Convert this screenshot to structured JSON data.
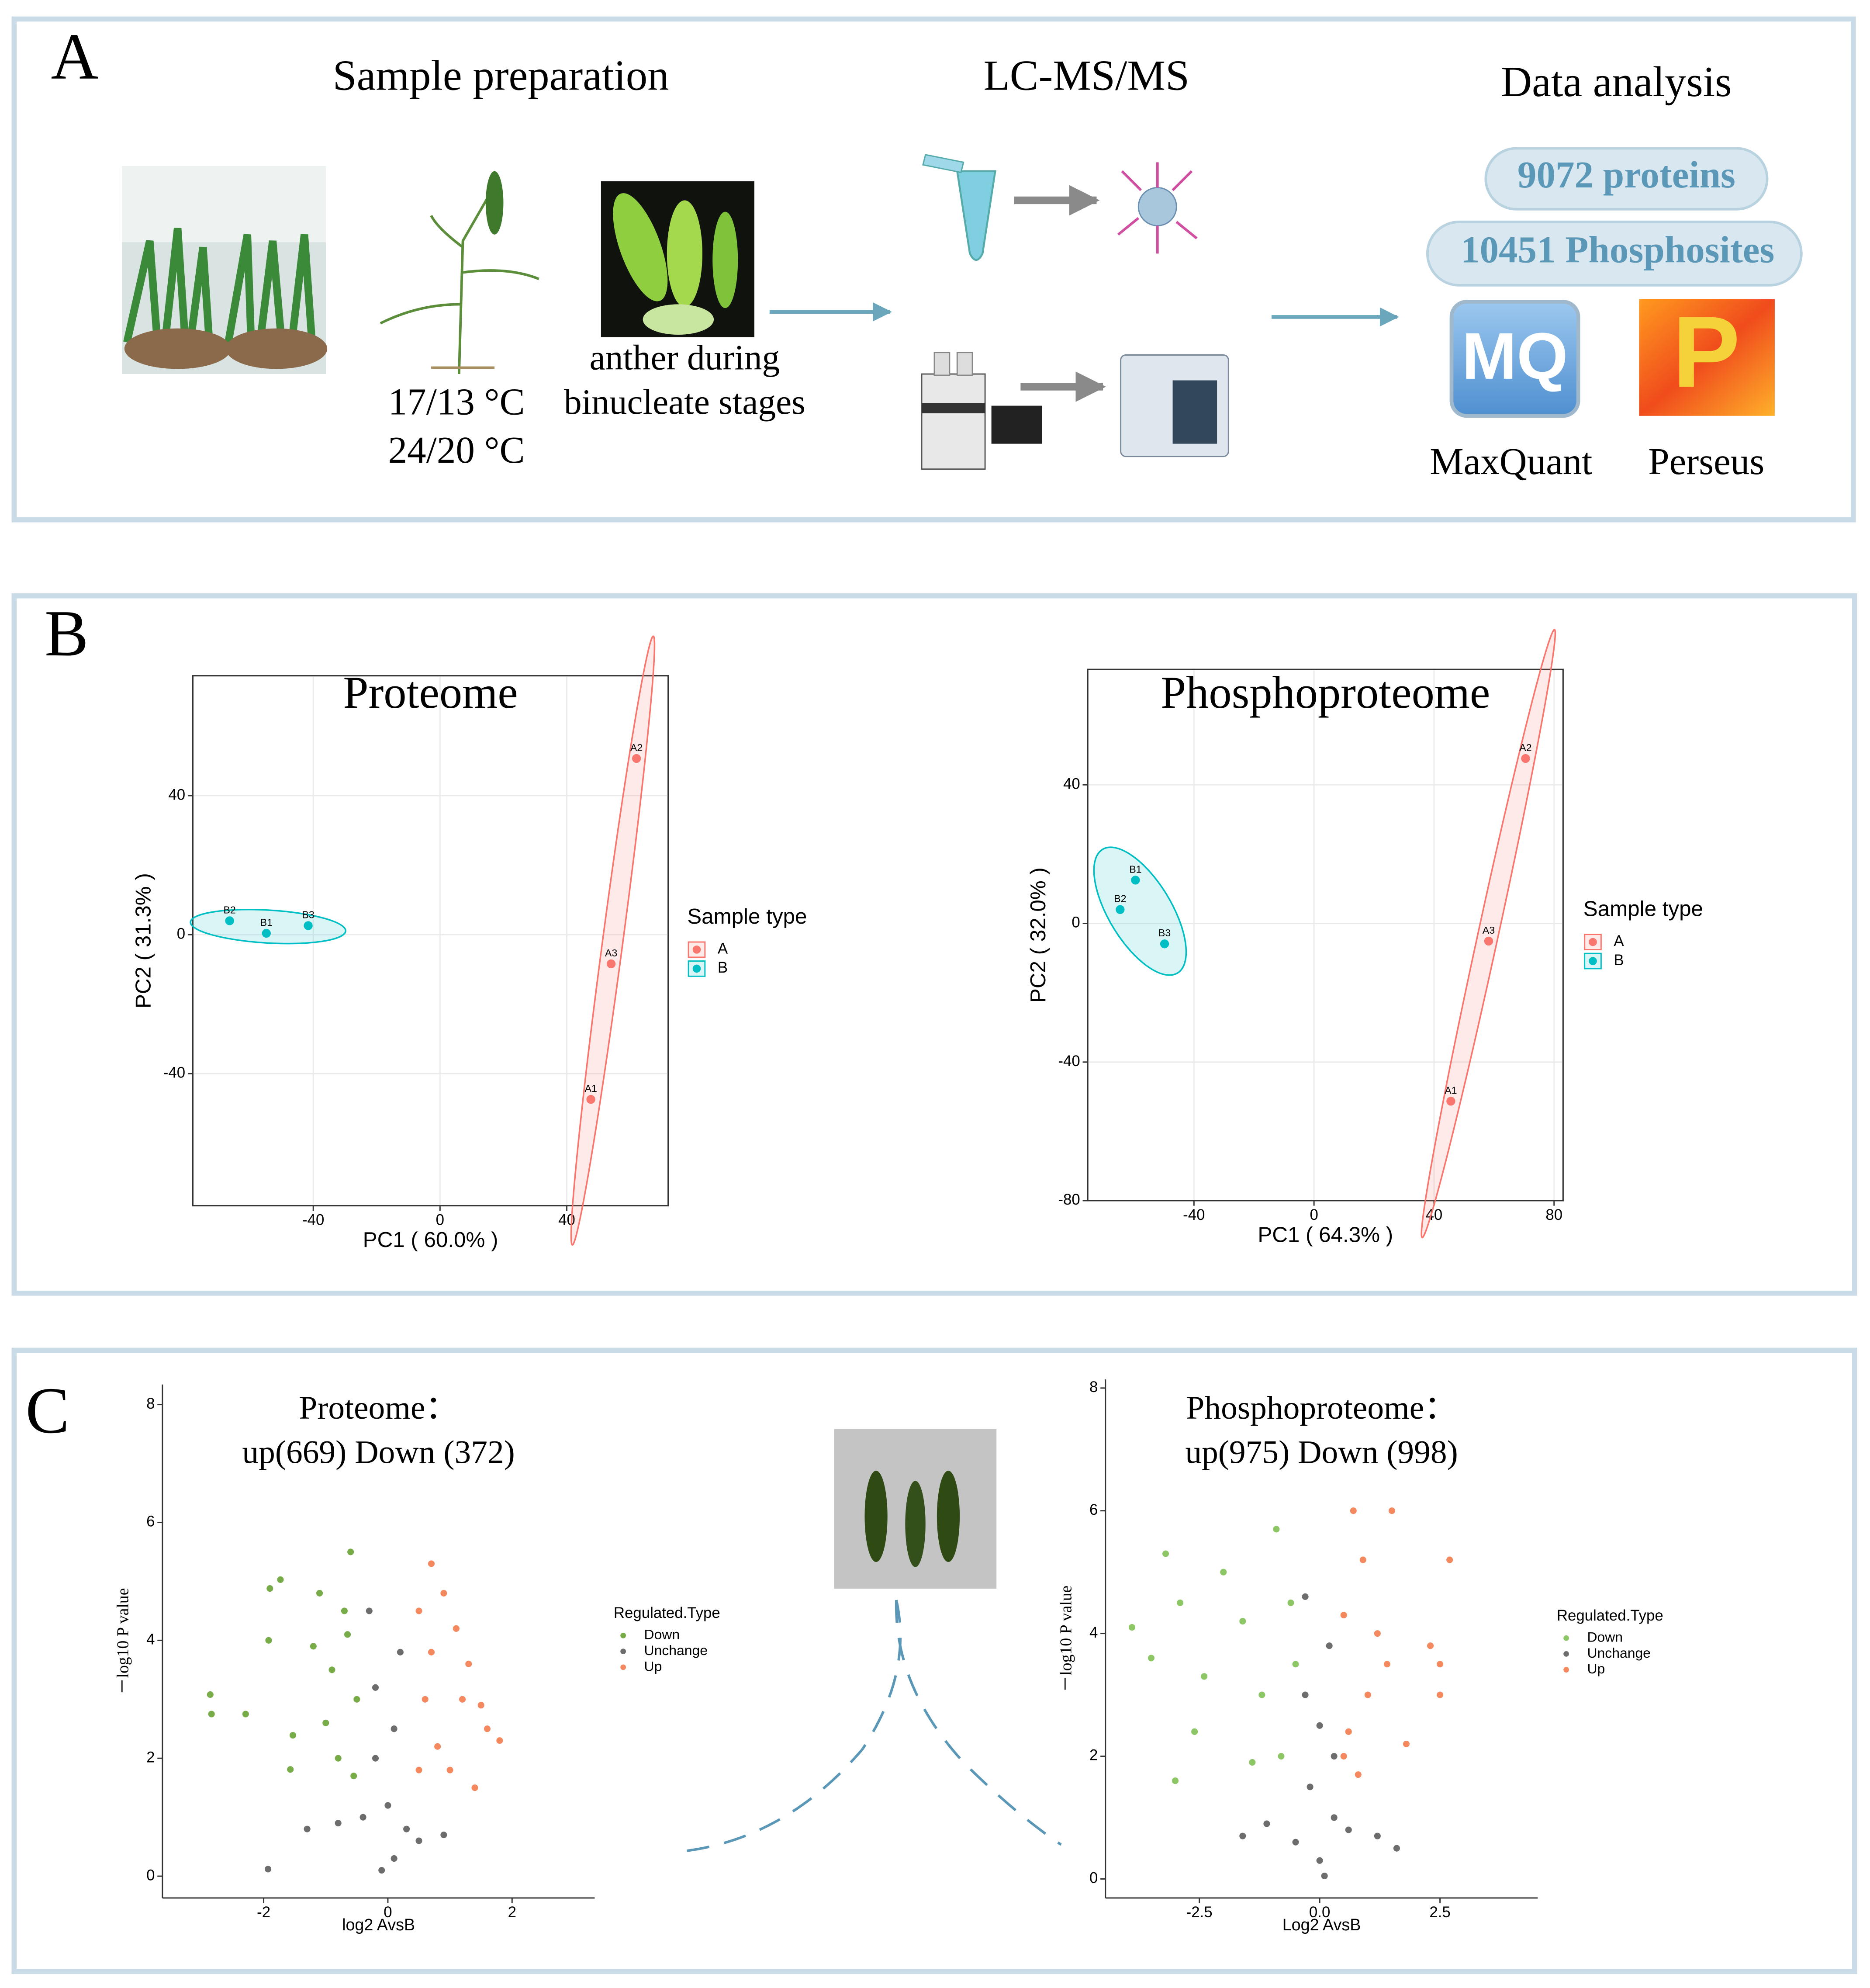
{
  "panel_a": {
    "label": "A",
    "sample_preparation": {
      "title": "Sample preparation",
      "temperatures": [
        "17/13 °C",
        "24/20 °C"
      ],
      "anther_caption": [
        "anther during",
        "binucleate stages"
      ]
    },
    "lcms": {
      "title": "LC-MS/MS"
    },
    "data_analysis": {
      "title": "Data analysis",
      "badges": [
        "9072 proteins",
        "10451 Phosphosites"
      ],
      "tools": [
        {
          "name": "MaxQuant",
          "logo": "MQ"
        },
        {
          "name": "Perseus",
          "logo": "P"
        }
      ]
    }
  },
  "panel_b": {
    "label": "B"
  },
  "panel_c": {
    "label": "C"
  },
  "chart_data": [
    {
      "type": "scatter",
      "title": "Proteome",
      "xlabel": "PC1 ( 60.0% )",
      "ylabel": "PC2 ( 31.3% )",
      "xlim": [
        -78,
        72
      ],
      "ylim": [
        -78,
        74.5
      ],
      "xticks": [
        -40,
        0,
        40
      ],
      "yticks": [
        -40,
        0,
        40
      ],
      "grid": true,
      "frame": "box",
      "ellipses": true,
      "legend_title": "Sample type",
      "legend": "right",
      "series": [
        {
          "name": "A",
          "color": "#F8766D",
          "x": [
            47.6,
            62,
            54
          ],
          "values": [
            -47.4,
            50.7,
            -8.4
          ],
          "labels": [
            "A1",
            "A2",
            "A3"
          ]
        },
        {
          "name": "B",
          "color": "#00BFC4",
          "x": [
            -54.8,
            -66.4,
            -41.6
          ],
          "values": [
            0.4,
            4,
            2.6
          ],
          "labels": [
            "B1",
            "B2",
            "B3"
          ]
        }
      ]
    },
    {
      "type": "scatter",
      "title": "Phosphoproteome",
      "xlabel": "PC1 ( 64.3% )",
      "ylabel": "PC2 ( 32.0% )",
      "xlim": [
        -75.4,
        83
      ],
      "ylim": [
        -80,
        73.3
      ],
      "xticks": [
        -40,
        0,
        40,
        80
      ],
      "yticks": [
        -80,
        -40,
        0,
        40
      ],
      "grid": true,
      "frame": "box",
      "ellipses": true,
      "legend_title": "Sample type",
      "legend": "right",
      "series": [
        {
          "name": "A",
          "color": "#F8766D",
          "x": [
            45.6,
            70.5,
            58.2
          ],
          "values": [
            -51.3,
            47.6,
            -5.1
          ],
          "labels": [
            "A1",
            "A2",
            "A3"
          ]
        },
        {
          "name": "B",
          "color": "#00BFC4",
          "x": [
            -59.5,
            -64.6,
            -49.8
          ],
          "values": [
            12.5,
            4,
            -5.9
          ],
          "labels": [
            "B1",
            "B2",
            "B3"
          ]
        }
      ]
    },
    {
      "type": "scatter",
      "title": "Proteome：",
      "subtitle": "up(669) Down (372)",
      "xlabel": "log2 AvsB",
      "ylabel": "－log10 P value",
      "xlim": [
        -3.63,
        3.33
      ],
      "ylim": [
        -0.37,
        8.34
      ],
      "xticks": [
        -2,
        0,
        2
      ],
      "yticks": [
        0,
        2,
        4,
        6,
        8
      ],
      "grid": false,
      "frame": "axes",
      "ellipses": false,
      "legend_title": "Regulated.Type",
      "legend": "right",
      "series": [
        {
          "name": "Down",
          "color": "#77ac48",
          "x": [
            -2.86,
            -2.84,
            -2.29,
            -1.92,
            -1.9,
            -1.73,
            -1.53,
            -1.57,
            -0.9,
            -0.7,
            -0.6,
            -1.0,
            -0.5,
            -0.8,
            -1.2,
            -0.55,
            -0.65,
            -1.1
          ],
          "values": [
            3.08,
            2.75,
            2.75,
            4.0,
            4.88,
            5.03,
            2.39,
            1.81,
            3.5,
            4.5,
            5.5,
            2.6,
            3.0,
            2.0,
            3.9,
            1.7,
            4.1,
            4.8
          ]
        },
        {
          "name": "Unchange",
          "color": "#6d6d6d",
          "x": [
            -0.3,
            -0.2,
            0.1,
            0,
            -0.4,
            0.3,
            0.1,
            -0.1,
            0.5,
            -0.8,
            0.9,
            -1.3,
            0.2,
            -1.93,
            -0.2
          ],
          "values": [
            4.5,
            3.2,
            2.5,
            1.2,
            1.0,
            0.8,
            0.3,
            0.1,
            0.6,
            0.9,
            0.7,
            0.8,
            3.8,
            0.12,
            2.0
          ]
        },
        {
          "name": "Up",
          "color": "#f4895f",
          "x": [
            0.5,
            0.7,
            0.9,
            1.1,
            1.3,
            1.6,
            1.8,
            0.6,
            0.8,
            1.0,
            1.4,
            0.5,
            1.2,
            0.7,
            1.5
          ],
          "values": [
            4.5,
            5.3,
            4.8,
            4.2,
            3.6,
            2.5,
            2.3,
            3.0,
            2.2,
            1.8,
            1.5,
            1.8,
            3.0,
            3.8,
            2.9
          ]
        }
      ]
    },
    {
      "type": "scatter",
      "title": "Phosphoproteome：",
      "subtitle": "up(975) Down (998)",
      "xlabel": "Log2 AvsB",
      "ylabel": "－log10 P value",
      "xlim": [
        -4.45,
        4.53
      ],
      "ylim": [
        -0.31,
        8.14
      ],
      "xticks": [
        -2.5,
        {
          "value": 0,
          "label": "0.0"
        },
        2.5
      ],
      "yticks": [
        0,
        2,
        4,
        6,
        8
      ],
      "grid": false,
      "frame": "axes",
      "ellipses": false,
      "legend_title": "Regulated.Type",
      "legend": "right",
      "series": [
        {
          "name": "Down",
          "color": "#8cc665",
          "x": [
            -3.9,
            -3.5,
            -3.2,
            -2.9,
            -2.6,
            -2.4,
            -2.0,
            -1.6,
            -1.2,
            -0.9,
            -0.6,
            -0.8,
            -0.5,
            -1.4,
            -3.0
          ],
          "values": [
            4.1,
            3.6,
            5.3,
            4.5,
            2.4,
            3.3,
            5.0,
            4.2,
            3.0,
            5.7,
            4.5,
            2.0,
            3.5,
            1.9,
            1.6
          ]
        },
        {
          "name": "Unchange",
          "color": "#6d6d6d",
          "x": [
            -0.3,
            0.2,
            0,
            -0.2,
            0.3,
            0,
            -0.5,
            0.6,
            1.2,
            -1.1,
            0.1,
            -0.3,
            0.3,
            1.6,
            -1.6
          ],
          "values": [
            4.6,
            3.8,
            2.5,
            1.5,
            1.0,
            0.3,
            0.6,
            0.8,
            0.7,
            0.9,
            0.05,
            3.0,
            2.0,
            0.5,
            0.7
          ]
        },
        {
          "name": "Up",
          "color": "#f4895f",
          "x": [
            0.5,
            0.7,
            0.9,
            1.5,
            2.7,
            2.3,
            2.5,
            2.5,
            1.2,
            1.0,
            0.6,
            1.8,
            0.8,
            1.4,
            0.5
          ],
          "values": [
            4.3,
            6.0,
            5.2,
            6.0,
            5.2,
            3.8,
            3.5,
            3.0,
            4.0,
            3.0,
            2.4,
            2.2,
            1.7,
            3.5,
            2.0
          ]
        }
      ]
    }
  ]
}
